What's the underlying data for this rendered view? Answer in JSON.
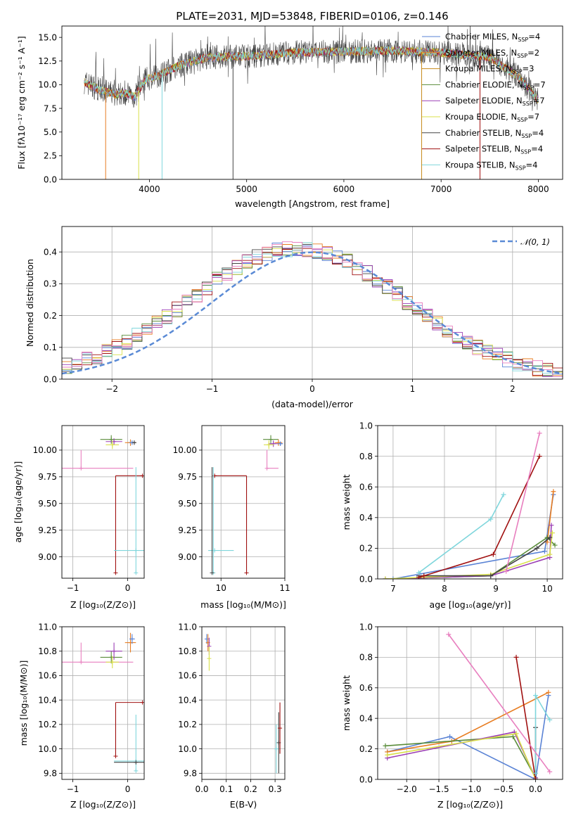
{
  "chart_data": [
    {
      "id": "spectrum",
      "type": "line",
      "title": "PLATE=2031, MJD=53848, FIBERID=0106, z=0.146",
      "xlabel": "wavelength [Angstrom, rest frame]",
      "ylabel": "Flux [fλ10⁻¹⁷ erg cm⁻² s⁻¹ A⁻¹]",
      "xlim": [
        3100,
        8250
      ],
      "ylim": [
        0,
        16.2
      ],
      "xticks": [
        "4000",
        "5000",
        "6000",
        "7000",
        "8000"
      ],
      "yticks": [
        "0.0",
        "2.5",
        "5.0",
        "7.5",
        "10.0",
        "12.5",
        "15.0"
      ],
      "grid": false,
      "legend_placement": "right",
      "spectrum_range": [
        3330,
        8000
      ],
      "continuum_nodes": [
        [
          3330,
          10.3
        ],
        [
          3500,
          9.4
        ],
        [
          3650,
          9.0
        ],
        [
          3750,
          9.1
        ],
        [
          3850,
          8.7
        ],
        [
          3950,
          10.5
        ],
        [
          4100,
          11.0
        ],
        [
          4300,
          12.0
        ],
        [
          4600,
          12.9
        ],
        [
          5000,
          13.0
        ],
        [
          5500,
          13.4
        ],
        [
          6000,
          13.5
        ],
        [
          6500,
          13.6
        ],
        [
          7000,
          13.4
        ],
        [
          7500,
          12.9
        ],
        [
          7800,
          10.8
        ],
        [
          8000,
          8.4
        ]
      ],
      "series": [
        {
          "name": "Chabrier MILES, Nₛₛₚ=4",
          "label_main": "Chabrier MILES, N",
          "label_sub": "SSP",
          "label_tail": "=4",
          "color": "#5a83d5"
        },
        {
          "name": "Salpeter MILES, Nₛₛₚ=2",
          "label_main": "Salpeter MILES, N",
          "label_sub": "SSP",
          "label_tail": "=2",
          "color": "#e87d22"
        },
        {
          "name": "Kroupa MILES, Nₛₛₚ=3",
          "label_main": "Kroupa MILES, N",
          "label_sub": "SSP",
          "label_tail": "=3",
          "color": "#c78a1a"
        },
        {
          "name": "Chabrier ELODIE, Nₛₛₚ=7",
          "label_main": "Chabrier ELODIE, N",
          "label_sub": "SSP",
          "label_tail": "=7",
          "color": "#5a8c3a"
        },
        {
          "name": "Salpeter ELODIE, Nₛₛₚ=7",
          "label_main": "Salpeter ELODIE, N",
          "label_sub": "SSP",
          "label_tail": "=7",
          "color": "#9b3fb5"
        },
        {
          "name": "Kroupa ELODIE, Nₛₛₚ=7",
          "label_main": "Kroupa ELODIE, N",
          "label_sub": "SSP",
          "label_tail": "=7",
          "color": "#d9e04a"
        },
        {
          "name": "Chabrier STELIB, Nₛₛₚ=4",
          "label_main": "Chabrier STELIB, N",
          "label_sub": "SSP",
          "label_tail": "=4",
          "color": "#444444"
        },
        {
          "name": "Salpeter STELIB, Nₛₛₚ=4",
          "label_main": "Salpeter STELIB, N",
          "label_sub": "SSP",
          "label_tail": "=4",
          "color": "#a01010"
        },
        {
          "name": "Kroupa STELIB, Nₛₛₚ=4",
          "label_main": "Kroupa STELIB, N",
          "label_sub": "SSP",
          "label_tail": "=4",
          "color": "#7fd6dc"
        }
      ]
    },
    {
      "id": "residuals",
      "type": "line",
      "xlabel": "(data-model)/error",
      "ylabel": "Normed distribution",
      "xlim": [
        -2.5,
        2.5
      ],
      "ylim": [
        0,
        0.48
      ],
      "xticks": [
        -2,
        -1,
        0,
        1,
        2
      ],
      "yticks": [
        0.0,
        0.1,
        0.2,
        0.3,
        0.4
      ],
      "grid": true,
      "legend_placement": "upper right",
      "reference": {
        "name": "𝒩(0, 1)",
        "color": "#5a8ad5",
        "style": "dashed"
      },
      "histogram_colors": [
        "#5a83d5",
        "#e87d22",
        "#5a8c3a",
        "#9b3fb5",
        "#d9e04a",
        "#444444",
        "#a01010",
        "#7fd6dc",
        "#e87fbf"
      ]
    },
    {
      "id": "age-vs-Z",
      "type": "scatter",
      "xlabel": "Z [log₁₀(Z/Z⊙)]",
      "ylabel": "age  [log₁₀(age/yr)]",
      "xlim": [
        -1.2,
        0.3
      ],
      "ylim": [
        8.8,
        10.23
      ],
      "xticks": [
        -1,
        0
      ],
      "yticks": [
        9.0,
        9.25,
        9.5,
        9.75,
        10.0
      ],
      "grid": true,
      "errorbars": [
        {
          "color": "#e87fbf",
          "x": -0.85,
          "y": 9.83,
          "xerr": 0.95,
          "yerr": [
            0,
            0.17
          ]
        },
        {
          "color": "#a01010",
          "x": -0.22,
          "y": 8.85,
          "xerr": 0,
          "yerr": [
            0,
            0.91
          ]
        },
        {
          "color": "#a01010",
          "x": 0.27,
          "y": 9.76,
          "xerr": [
            0.49,
            0
          ],
          "yerr": 0
        },
        {
          "color": "#7fd6dc",
          "x": 0.15,
          "y": 9.06,
          "xerr": [
            0.4,
            0.25
          ],
          "yerr": 0
        },
        {
          "color": "#7fd6dc",
          "x": 0.15,
          "y": 8.85,
          "xerr": 0,
          "yerr": [
            0,
            0.99
          ]
        },
        {
          "color": "#5a8c3a",
          "x": -0.3,
          "y": 10.1,
          "xerr": 0.2,
          "yerr": 0.04
        },
        {
          "color": "#9b3fb5",
          "x": -0.25,
          "y": 10.08,
          "xerr": 0.15,
          "yerr": 0.03
        },
        {
          "color": "#d9e04a",
          "x": -0.28,
          "y": 10.05,
          "xerr": 0.12,
          "yerr": 0.04
        },
        {
          "color": "#e87d22",
          "x": 0.05,
          "y": 10.07,
          "xerr": 0.1,
          "yerr": 0.03
        },
        {
          "color": "#5a83d5",
          "x": 0.08,
          "y": 10.07,
          "xerr": 0.05,
          "yerr": 0.02
        },
        {
          "color": "#444444",
          "x": 0.12,
          "y": 10.07,
          "xerr": 0.03,
          "yerr": 0.02
        }
      ]
    },
    {
      "id": "age-vs-mass",
      "type": "scatter",
      "xlabel": "mass [log₁₀(M/M⊙)]",
      "xlim": [
        9.7,
        11
      ],
      "ylim": [
        8.8,
        10.23
      ],
      "xticks": [
        10,
        11
      ],
      "yticks": [
        9.0,
        9.25,
        9.5,
        9.75,
        10.0
      ],
      "grid": true,
      "errorbars": [
        {
          "color": "#a01010",
          "x": 10.4,
          "y": 8.85,
          "xerr": 0,
          "yerr": [
            0,
            0.91
          ]
        },
        {
          "color": "#a01010",
          "x": 9.9,
          "y": 9.76,
          "xerr": [
            0,
            0.5
          ],
          "yerr": 0
        },
        {
          "color": "#7fd6dc",
          "x": 9.9,
          "y": 9.06,
          "xerr": [
            0.1,
            0.3
          ],
          "yerr": 0
        },
        {
          "color": "#7fd6dc",
          "x": 9.88,
          "y": 8.85,
          "xerr": 0,
          "yerr": [
            0,
            0.99
          ]
        },
        {
          "color": "#444444",
          "x": 9.86,
          "y": 8.85,
          "xerr": 0,
          "yerr": [
            0,
            0.99
          ]
        },
        {
          "color": "#e87fbf",
          "x": 10.72,
          "y": 9.83,
          "xerr": [
            0,
            0.18
          ],
          "yerr": [
            0,
            0.17
          ]
        },
        {
          "color": "#5a8c3a",
          "x": 10.78,
          "y": 10.1,
          "xerr": 0.12,
          "yerr": 0.04
        },
        {
          "color": "#9b3fb5",
          "x": 10.82,
          "y": 10.06,
          "xerr": 0.08,
          "yerr": 0.03
        },
        {
          "color": "#d9e04a",
          "x": 10.75,
          "y": 10.05,
          "xerr": 0.08,
          "yerr": 0.04
        },
        {
          "color": "#e87d22",
          "x": 10.9,
          "y": 10.07,
          "xerr": 0.06,
          "yerr": 0.03
        },
        {
          "color": "#5a83d5",
          "x": 10.93,
          "y": 10.06,
          "xerr": 0.04,
          "yerr": 0.02
        }
      ]
    },
    {
      "id": "weight-vs-age",
      "type": "line",
      "xlabel": "age  [log₁₀(age/yr)]",
      "ylabel": "mass weight",
      "xlim": [
        6.7,
        10.3
      ],
      "ylim": [
        0,
        1
      ],
      "xticks": [
        7,
        8,
        9,
        10
      ],
      "yticks": [
        0.0,
        0.2,
        0.4,
        0.6,
        0.8,
        1.0
      ],
      "grid": true,
      "series": [
        {
          "color": "#5a83d5",
          "x": [
            7.0,
            9.95,
            10.12
          ],
          "y": [
            0.0,
            0.18,
            0.55
          ]
        },
        {
          "color": "#e87d22",
          "x": [
            10.0,
            10.12
          ],
          "y": [
            0.24,
            0.57
          ]
        },
        {
          "color": "#5a8c3a",
          "x": [
            6.85,
            8.9,
            10.0,
            10.15
          ],
          "y": [
            0.0,
            0.02,
            0.27,
            0.22
          ]
        },
        {
          "color": "#9b3fb5",
          "x": [
            6.85,
            8.9,
            10.05,
            10.08
          ],
          "y": [
            0.0,
            0.02,
            0.14,
            0.35
          ]
        },
        {
          "color": "#d9e04a",
          "x": [
            6.85,
            8.9,
            10.05,
            10.1
          ],
          "y": [
            0.0,
            0.03,
            0.16,
            0.3
          ]
        },
        {
          "color": "#444444",
          "x": [
            7.5,
            8.9,
            9.8,
            10.05
          ],
          "y": [
            0.02,
            0.02,
            0.2,
            0.27
          ]
        },
        {
          "color": "#a01010",
          "x": [
            7.5,
            7.6,
            8.95,
            9.85
          ],
          "y": [
            0.01,
            0.02,
            0.16,
            0.8
          ]
        },
        {
          "color": "#7fd6dc",
          "x": [
            7.5,
            8.9,
            9.15
          ],
          "y": [
            0.04,
            0.39,
            0.55
          ]
        },
        {
          "color": "#e87fbf",
          "x": [
            9.2,
            9.85
          ],
          "y": [
            0.05,
            0.95
          ]
        }
      ]
    },
    {
      "id": "mass-vs-Z",
      "type": "scatter",
      "xlabel": "Z [log₁₀(Z/Z⊙)]",
      "ylabel": "mass [log₁₀(M/M⊙)]",
      "xlim": [
        -1.2,
        0.3
      ],
      "ylim": [
        9.75,
        11
      ],
      "xticks": [
        -1,
        0
      ],
      "yticks": [
        9.8,
        10.0,
        10.2,
        10.4,
        10.6,
        10.8,
        11.0
      ],
      "grid": true,
      "errorbars": [
        {
          "color": "#e87fbf",
          "x": -0.85,
          "y": 10.71,
          "xerr": 0.95,
          "yerr": [
            0,
            0.16
          ]
        },
        {
          "color": "#a01010",
          "x": -0.22,
          "y": 9.94,
          "xerr": 0,
          "yerr": [
            0,
            0.44
          ]
        },
        {
          "color": "#a01010",
          "x": 0.27,
          "y": 10.38,
          "xerr": [
            0.49,
            0
          ],
          "yerr": 0
        },
        {
          "color": "#7fd6dc",
          "x": 0.15,
          "y": 9.9,
          "xerr": [
            0.4,
            0.25
          ],
          "yerr": 0
        },
        {
          "color": "#7fd6dc",
          "x": 0.15,
          "y": 9.82,
          "xerr": 0,
          "yerr": [
            0,
            0.46
          ]
        },
        {
          "color": "#444444",
          "x": 0.15,
          "y": 9.89,
          "xerr": [
            0.4,
            0.25
          ],
          "yerr": 0
        },
        {
          "color": "#5a8c3a",
          "x": -0.3,
          "y": 10.75,
          "xerr": 0.2,
          "yerr": 0.05
        },
        {
          "color": "#9b3fb5",
          "x": -0.25,
          "y": 10.8,
          "xerr": 0.15,
          "yerr": 0.07
        },
        {
          "color": "#d9e04a",
          "x": -0.28,
          "y": 10.71,
          "xerr": 0.12,
          "yerr": 0.05
        },
        {
          "color": "#e87d22",
          "x": 0.05,
          "y": 10.87,
          "xerr": 0.1,
          "yerr": 0.08
        },
        {
          "color": "#5a83d5",
          "x": 0.08,
          "y": 10.9,
          "xerr": 0.05,
          "yerr": 0.04
        }
      ]
    },
    {
      "id": "mass-vs-ebv",
      "type": "scatter",
      "xlabel": "E(B-V)",
      "xlim": [
        0,
        0.34
      ],
      "ylim": [
        9.75,
        11
      ],
      "xticks": [
        "0.0",
        "0.1",
        "0.2",
        "0.3"
      ],
      "yticks": [
        9.8,
        10.0,
        10.2,
        10.4,
        10.6,
        10.8,
        11.0
      ],
      "grid": true,
      "errorbars": [
        {
          "color": "#5a83d5",
          "x": 0.02,
          "y": 10.9,
          "xerr": 0,
          "yerr": 0.04
        },
        {
          "color": "#e87d22",
          "x": 0.025,
          "y": 10.87,
          "xerr": 0,
          "yerr": 0.07
        },
        {
          "color": "#9b3fb5",
          "x": 0.03,
          "y": 10.84,
          "xerr": 0,
          "yerr": 0.07
        },
        {
          "color": "#d9e04a",
          "x": 0.03,
          "y": 10.74,
          "xerr": 0,
          "yerr": 0.1
        },
        {
          "color": "#444444",
          "x": 0.315,
          "y": 10.05,
          "xerr": 0,
          "yerr": 0.25
        },
        {
          "color": "#a01010",
          "x": 0.32,
          "y": 10.17,
          "xerr": 0,
          "yerr": 0.21
        },
        {
          "color": "#7fd6dc",
          "x": 0.305,
          "y": 10.0,
          "xerr": 0,
          "yerr": 0.2
        }
      ]
    },
    {
      "id": "weight-vs-Z",
      "type": "line",
      "xlabel": "Z [log₁₀(Z/Z⊙)]",
      "ylabel": "mass weight",
      "xlim": [
        -2.45,
        0.42
      ],
      "ylim": [
        0,
        1
      ],
      "xticks": [
        "−2.0",
        "−1.5",
        "−1.0",
        "−0.5",
        "0.0"
      ],
      "yticks": [
        0.0,
        0.2,
        0.4,
        0.6,
        0.8,
        1.0
      ],
      "grid": true,
      "series": [
        {
          "color": "#5a83d5",
          "x": [
            -2.3,
            -1.33,
            0.0,
            0.2
          ],
          "y": [
            0.18,
            0.28,
            0.0,
            0.55
          ]
        },
        {
          "color": "#e87d22",
          "x": [
            -2.3,
            -1.3,
            0.2
          ],
          "y": [
            0.18,
            0.25,
            0.57
          ]
        },
        {
          "color": "#5a8c3a",
          "x": [
            -2.33,
            -0.35,
            0.0
          ],
          "y": [
            0.22,
            0.28,
            0.01
          ]
        },
        {
          "color": "#9b3fb5",
          "x": [
            -2.3,
            -0.33,
            0.0
          ],
          "y": [
            0.14,
            0.31,
            0.01
          ]
        },
        {
          "color": "#d9e04a",
          "x": [
            -2.3,
            -0.3,
            0.0
          ],
          "y": [
            0.16,
            0.3,
            0.0
          ]
        },
        {
          "color": "#444444",
          "x": [
            0.0,
            0.0
          ],
          "y": [
            0.0,
            0.34
          ]
        },
        {
          "color": "#a01010",
          "x": [
            -0.3,
            0.0
          ],
          "y": [
            0.8,
            0.0
          ]
        },
        {
          "color": "#7fd6dc",
          "x": [
            0.0,
            0.0,
            0.22
          ],
          "y": [
            0.04,
            0.55,
            0.39
          ]
        },
        {
          "color": "#e87fbf",
          "x": [
            -1.35,
            0.22
          ],
          "y": [
            0.95,
            0.05
          ]
        }
      ]
    }
  ]
}
